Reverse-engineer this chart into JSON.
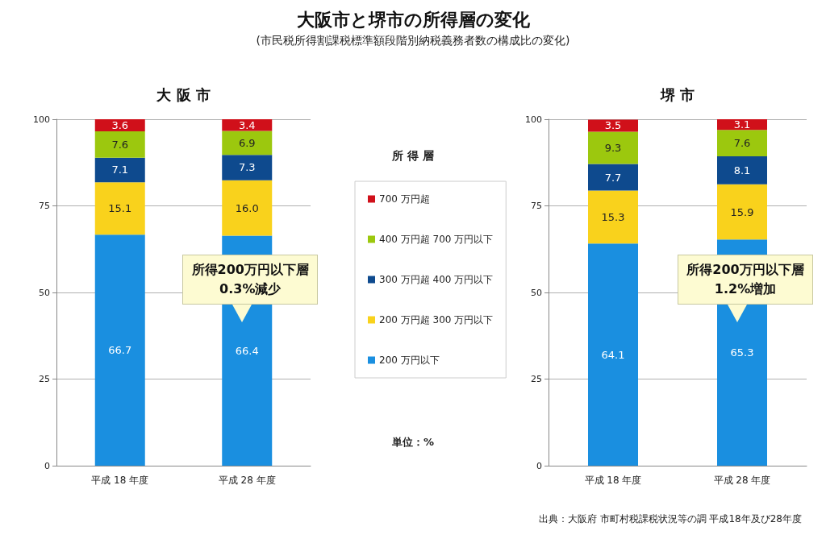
{
  "chart_data": [
    {
      "type": "bar",
      "stacked": true,
      "title": "大阪市と堺市の所得層の変化",
      "subtitle": "(市民税所得割課税標準額段階別納税義務者数の構成比の変化)",
      "legend_title": "所 得 層",
      "legend": "right",
      "categories": [
        "平成 18 年度",
        "平成 28 年度"
      ],
      "ylim": [
        0,
        100
      ],
      "yticks": [
        0,
        25,
        50,
        75,
        100
      ],
      "grid": "y",
      "data_labels": true,
      "series": [
        {
          "name": "200 万円以下",
          "color": "#1a8fe0",
          "values": [
            66.7,
            66.4
          ],
          "value_labels": [
            "66.7",
            "66.4"
          ]
        },
        {
          "name": "200 万円超 300 万円以下",
          "color": "#f9d21c",
          "values": [
            15.1,
            16.0
          ],
          "value_labels": [
            "15.1",
            "16.0"
          ]
        },
        {
          "name": "300 万円超 400 万円以下",
          "color": "#0e4a8e",
          "values": [
            7.1,
            7.3
          ],
          "value_labels": [
            "7.1",
            "7.3"
          ]
        },
        {
          "name": "400 万円超 700 万円以下",
          "color": "#9cc80e",
          "values": [
            7.6,
            6.9
          ],
          "value_labels": [
            "7.6",
            "6.9"
          ]
        },
        {
          "name": "700 万円超",
          "color": "#d0101a",
          "values": [
            3.6,
            3.4
          ],
          "value_labels": [
            "3.6",
            "3.4"
          ]
        }
      ],
      "annotations": [
        "大 阪 市",
        "所得200万円以下層\n0.3%減少",
        "単位：%",
        "出典：大阪府 市町村税課税状況等の調 平成18年及び28年度"
      ]
    },
    {
      "type": "bar",
      "stacked": true,
      "categories": [
        "平成 18 年度",
        "平成 28 年度"
      ],
      "ylim": [
        0,
        100
      ],
      "yticks": [
        0,
        25,
        50,
        75,
        100
      ],
      "grid": "y",
      "data_labels": true,
      "series": [
        {
          "color": "#1a8fe0",
          "values": [
            64.1,
            65.3
          ]
        },
        {
          "color": "#f9d21c",
          "values": [
            15.3,
            15.9
          ]
        },
        {
          "color": "#0e4a8e",
          "values": [
            7.7,
            8.1
          ]
        },
        {
          "color": "#9cc80e",
          "values": [
            9.3,
            7.6
          ]
        },
        {
          "color": "#d0101a",
          "values": [
            3.5,
            3.1
          ]
        }
      ],
      "annotations": [
        "堺 市",
        "所得200万円以下層\n1.2%増加"
      ]
    }
  ]
}
